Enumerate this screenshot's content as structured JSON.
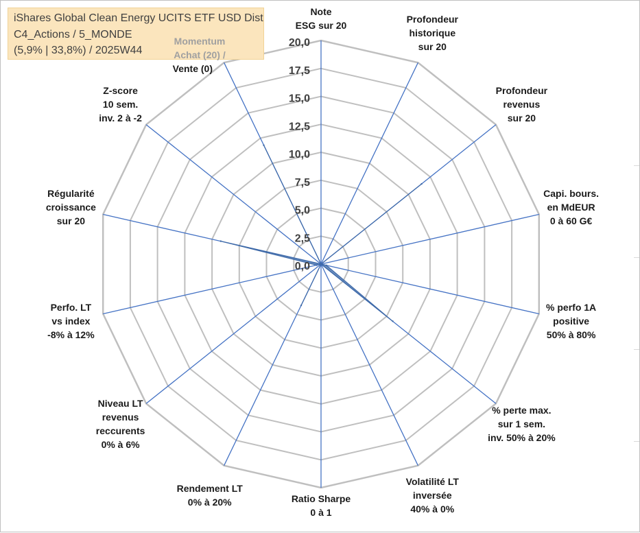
{
  "info_box": {
    "line1": "iShares Global Clean Energy UCITS ETF USD Dist",
    "line2": "C4_Actions / 5_MONDE",
    "line3": "(5,9% | 33,8%) / 2025W44",
    "momentum_line1": "Momentum",
    "momentum_line2": "Achat (20) /"
  },
  "chart_data": {
    "type": "radar",
    "rmax": 20,
    "tick_step": 2.5,
    "tick_labels": [
      "0,0",
      "2,5",
      "5,0",
      "7,5",
      "10,0",
      "12,5",
      "15,0",
      "17,5",
      "20,0"
    ],
    "categories": [
      [
        "Note",
        "ESG sur 20"
      ],
      [
        "Profondeur",
        "historique",
        "sur 20"
      ],
      [
        "Profondeur",
        "revenus",
        "sur 20"
      ],
      [
        "Capi. bours.",
        "en MdEUR",
        "0 à 60 G€"
      ],
      [
        "% perfo 1A",
        "positive",
        "50% à 80%"
      ],
      [
        "% perte max.",
        "sur 1 sem.",
        "inv. 50% à 20%"
      ],
      [
        "Volatilité LT",
        "inversée",
        "40% à 0%"
      ],
      [
        "Ratio Sharpe",
        "0 à 1"
      ],
      [
        "Rendement LT",
        "0% à 20%"
      ],
      [
        "Niveau LT",
        "revenus",
        "reccurents",
        "0% à 6%"
      ],
      [
        "Perfo. LT",
        "vs index",
        "-8% à 12%"
      ],
      [
        "Régularité",
        "croissance",
        "sur 20"
      ],
      [
        "Z-score",
        "10 sem.",
        "inv. 2 à -2"
      ],
      [
        "Momentum",
        "Achat (20) /",
        "Vente (0)"
      ]
    ],
    "series": [
      {
        "name": "iShares Global Clean Energy UCITS ETF USD Dist",
        "values": [
          0,
          0,
          11.5,
          0,
          0.5,
          8.2,
          0,
          0,
          4.1,
          0,
          0.4,
          9.2,
          0,
          11.8
        ],
        "color": "#4a75b0"
      }
    ],
    "colors": {
      "grid": "#bfbfbf",
      "spoke": "#4472c4",
      "fill": "#4a75b0"
    }
  }
}
